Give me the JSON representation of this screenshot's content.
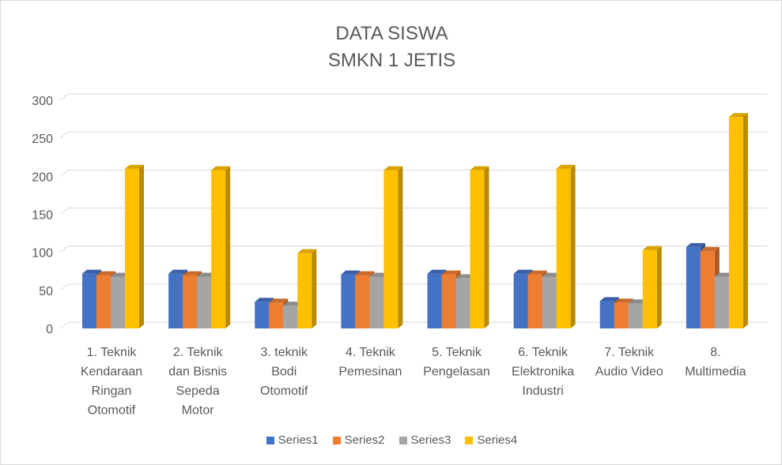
{
  "chart_data": {
    "type": "bar",
    "title": "DATA SISWA",
    "subtitle": "SMKN 1 JETIS",
    "categories": [
      [
        "1. Teknik",
        "Kendaraan",
        "Ringan",
        "Otomotif"
      ],
      [
        "2. Teknik",
        "dan Bisnis",
        "Sepeda",
        "Motor"
      ],
      [
        "3. teknik",
        "Bodi",
        "Otomotif"
      ],
      [
        "4. Teknik",
        "Pemesinan"
      ],
      [
        "5. Teknik",
        "Pengelasan"
      ],
      [
        "6. Teknik",
        "Elektronika",
        "Industri"
      ],
      [
        "7. Teknik",
        "Audio Video"
      ],
      [
        "8.",
        "Multimedia"
      ]
    ],
    "series": [
      {
        "name": "Series1",
        "color": "#4472C4",
        "values": [
          72,
          72,
          35,
          71,
          72,
          72,
          36,
          107
        ]
      },
      {
        "name": "Series2",
        "color": "#ED7D31",
        "values": [
          70,
          70,
          34,
          70,
          71,
          71,
          34,
          102
        ]
      },
      {
        "name": "Series3",
        "color": "#A5A5A5",
        "values": [
          68,
          68,
          30,
          68,
          66,
          68,
          33,
          68
        ]
      },
      {
        "name": "Series4",
        "color": "#FFC000",
        "values": [
          210,
          208,
          99,
          208,
          208,
          210,
          103,
          278
        ]
      }
    ],
    "y_ticks": [
      "0",
      "50",
      "100",
      "150",
      "200",
      "250",
      "300"
    ],
    "ylim": [
      0,
      300
    ],
    "grid": true,
    "legend_position": "bottom"
  }
}
